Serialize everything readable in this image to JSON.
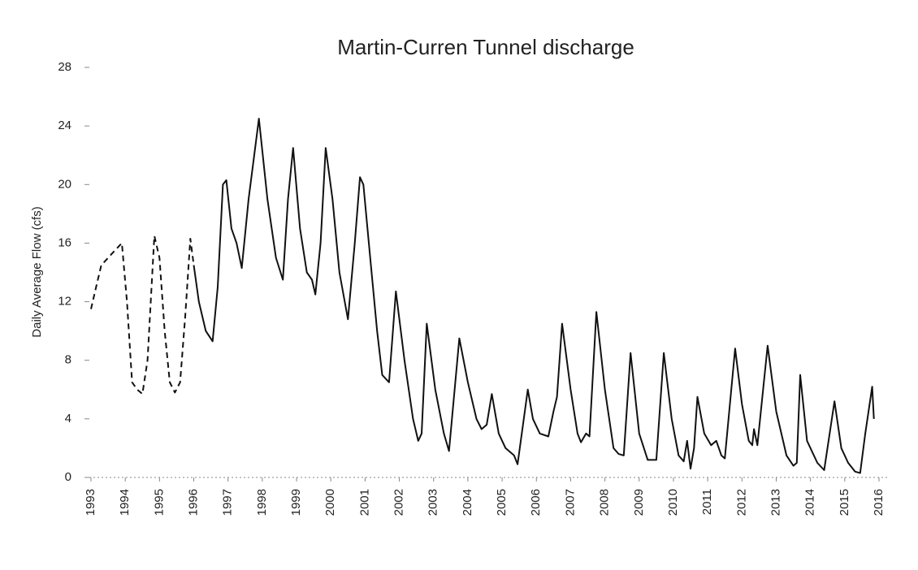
{
  "chart_data": {
    "type": "line",
    "title": "Martin-Curren Tunnel discharge",
    "y_label": "Daily Average Flow (cfs)",
    "xlim": [
      1993,
      2016
    ],
    "xticks": [
      1993,
      1994,
      1995,
      1996,
      1997,
      1998,
      1999,
      2000,
      2001,
      2002,
      2003,
      2004,
      2005,
      2006,
      2007,
      2008,
      2009,
      2010,
      2011,
      2012,
      2013,
      2014,
      2015,
      2016
    ],
    "ylim": [
      0,
      28
    ],
    "yticks": [
      0,
      4,
      8,
      12,
      16,
      20,
      24,
      28
    ],
    "grid": false,
    "series": [
      {
        "color": "#111111",
        "dashed": true,
        "x": [
          1993.0,
          1993.15,
          1993.3,
          1993.5,
          1993.7,
          1993.9,
          1994.05,
          1994.2,
          1994.35,
          1994.5,
          1994.65,
          1994.85,
          1995.0,
          1995.15,
          1995.3,
          1995.45,
          1995.6,
          1995.75,
          1995.9,
          1996.0
        ],
        "values": [
          11.5,
          13,
          14.5,
          15,
          15.5,
          16,
          12,
          6.5,
          6,
          5.7,
          8,
          16.5,
          15,
          10,
          6.5,
          5.8,
          6.5,
          11,
          16.3,
          14.5
        ]
      },
      {
        "color": "#111111",
        "dashed": false,
        "x": [
          1996.0,
          1996.15,
          1996.35,
          1996.55,
          1996.7,
          1996.85,
          1996.95,
          1997.1,
          1997.25,
          1997.4,
          1997.6,
          1997.9,
          1998.15,
          1998.4,
          1998.6,
          1998.75,
          1998.9,
          1999.1,
          1999.3,
          1999.45,
          1999.55,
          1999.7,
          1999.85,
          2000.05,
          2000.25,
          2000.5,
          2000.7,
          2000.85,
          2000.95,
          2001.15,
          2001.35,
          2001.5,
          2001.7,
          2001.9,
          2002.15,
          2002.4,
          2002.55,
          2002.65,
          2002.8,
          2003.05,
          2003.3,
          2003.45,
          2003.75,
          2004.0,
          2004.25,
          2004.4,
          2004.55,
          2004.7,
          2004.9,
          2005.1,
          2005.35,
          2005.45,
          2005.75,
          2005.9,
          2006.1,
          2006.35,
          2006.5,
          2006.6,
          2006.75,
          2007.0,
          2007.2,
          2007.3,
          2007.45,
          2007.55,
          2007.75,
          2008.0,
          2008.25,
          2008.4,
          2008.55,
          2008.75,
          2009.0,
          2009.25,
          2009.5,
          2009.72,
          2009.95,
          2010.15,
          2010.3,
          2010.4,
          2010.5,
          2010.6,
          2010.7,
          2010.9,
          2011.1,
          2011.25,
          2011.4,
          2011.5,
          2011.8,
          2012.0,
          2012.2,
          2012.3,
          2012.35,
          2012.45,
          2012.75,
          2013.0,
          2013.3,
          2013.5,
          2013.6,
          2013.7,
          2013.9,
          2014.2,
          2014.4,
          2014.7,
          2014.9,
          2015.1,
          2015.3,
          2015.45,
          2015.6,
          2015.8,
          2015.85
        ],
        "values": [
          14.5,
          12,
          10,
          9.3,
          13,
          20,
          20.3,
          17,
          16,
          14.3,
          19,
          24.5,
          19,
          15,
          13.5,
          19,
          22.5,
          17,
          14,
          13.5,
          12.5,
          16,
          22.5,
          19,
          14,
          10.8,
          16,
          20.5,
          20,
          15,
          10,
          7,
          6.5,
          12.7,
          8,
          4,
          2.5,
          3,
          10.5,
          6,
          3,
          1.8,
          9.5,
          6.5,
          4,
          3.3,
          3.6,
          5.7,
          3,
          2,
          1.5,
          0.9,
          6,
          4,
          3,
          2.8,
          4.5,
          5.5,
          10.5,
          6,
          3,
          2.4,
          3,
          2.8,
          11.3,
          6,
          2,
          1.6,
          1.5,
          8.5,
          3,
          1.2,
          1.2,
          8.5,
          4,
          1.5,
          1.1,
          2.5,
          0.6,
          2,
          5.5,
          3,
          2.2,
          2.5,
          1.5,
          1.3,
          8.8,
          5,
          2.5,
          2.2,
          3.3,
          2.2,
          9,
          4.5,
          1.5,
          0.8,
          1,
          7,
          2.5,
          1,
          0.5,
          5.2,
          2,
          1,
          0.4,
          0.3,
          3,
          6.2,
          4
        ]
      }
    ]
  }
}
